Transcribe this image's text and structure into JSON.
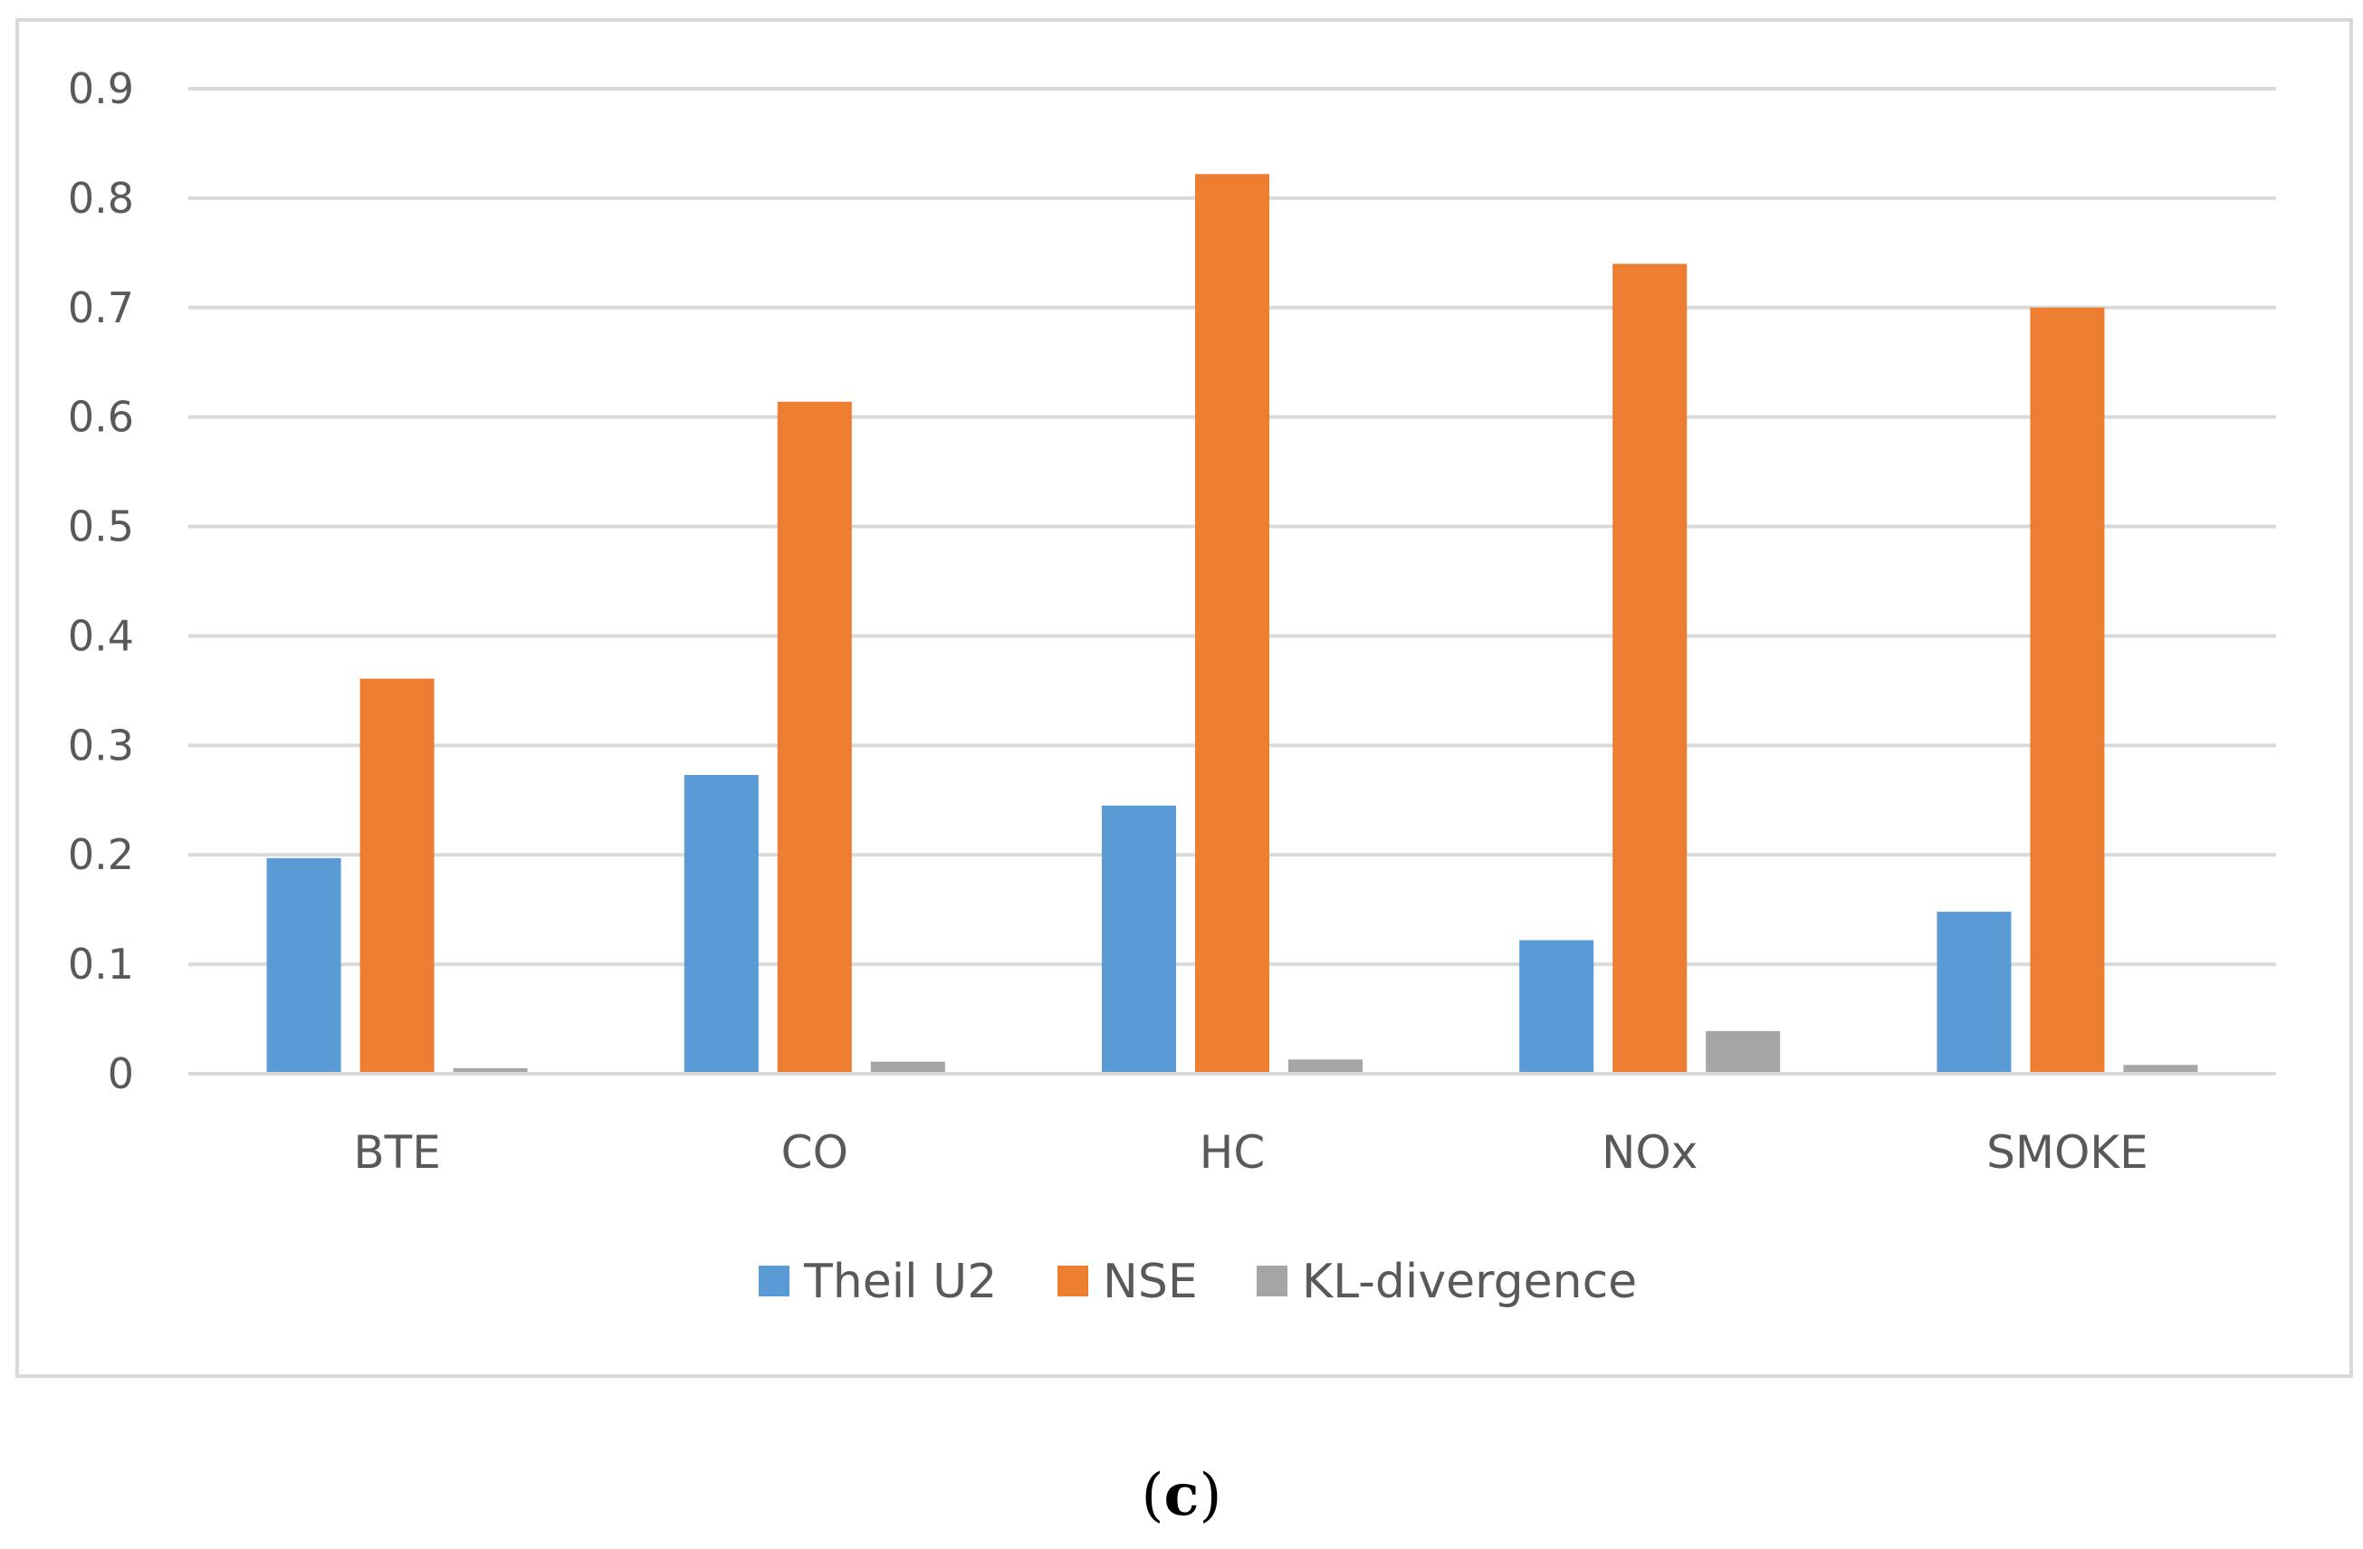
{
  "chart_data": {
    "type": "bar",
    "title": "",
    "xlabel": "",
    "ylabel": "",
    "ylim": [
      0,
      0.9
    ],
    "yticks": [
      0,
      0.1,
      0.2,
      0.3,
      0.4,
      0.5,
      0.6,
      0.7,
      0.8,
      0.9
    ],
    "ytick_labels": [
      "0",
      "0.1",
      "0.2",
      "0.3",
      "0.4",
      "0.5",
      "0.6",
      "0.7",
      "0.8",
      "0.9"
    ],
    "grid": true,
    "legend_position": "bottom",
    "categories": [
      "BTE",
      "CO",
      "HC",
      "NOx",
      "SMOKE"
    ],
    "series": [
      {
        "name": "Theil U2",
        "color": "#5b9bd5",
        "values": [
          0.197,
          0.273,
          0.245,
          0.122,
          0.148
        ]
      },
      {
        "name": "NSE",
        "color": "#ed7d31",
        "values": [
          0.361,
          0.614,
          0.822,
          0.74,
          0.7
        ]
      },
      {
        "name": "KL-divergence",
        "color": "#a5a5a5",
        "values": [
          0.005,
          0.011,
          0.013,
          0.039,
          0.008
        ]
      }
    ]
  },
  "caption": {
    "open": "(",
    "letter": "c",
    "close": ")"
  },
  "colors": {
    "gridline": "#d9d9d9",
    "axis": "#d9d9d9",
    "frame_border": "#d9d9d9",
    "text": "#595959"
  }
}
